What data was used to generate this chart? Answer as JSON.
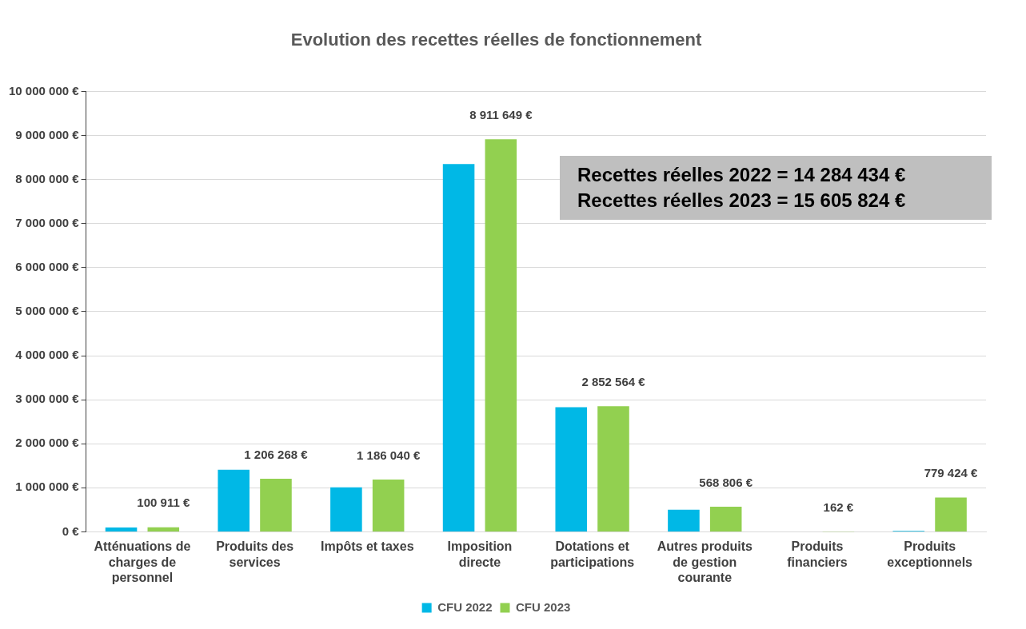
{
  "chart_data": {
    "type": "bar",
    "title": "Evolution des recettes réelles de fonctionnement",
    "categories": [
      "Atténuations de charges de personnel",
      "Produits des services",
      "Impôts et taxes",
      "Imposition directe",
      "Dotations et participations",
      "Autres produits de gestion courante",
      "Produits financiers",
      "Produits exceptionnels"
    ],
    "series": [
      {
        "name": "CFU 2022",
        "color": "#00b8e6",
        "values": [
          100000,
          1410000,
          1010000,
          8350000,
          2830000,
          500000,
          0,
          20000
        ]
      },
      {
        "name": "CFU 2023",
        "color": "#92d050",
        "values": [
          100911,
          1206268,
          1186040,
          8911649,
          2852564,
          568806,
          162,
          779424
        ],
        "value_labels": [
          "100 911 €",
          "1 206 268 €",
          "1 186 040 €",
          "8 911 649 €",
          "2 852 564 €",
          "568 806 €",
          "162 €",
          "779 424 €"
        ]
      }
    ],
    "ylim": [
      0,
      10000000
    ],
    "yticks": [
      {
        "value": 0,
        "label": "0 €"
      },
      {
        "value": 1000000,
        "label": "1 000 000 €"
      },
      {
        "value": 2000000,
        "label": "2 000 000 €"
      },
      {
        "value": 3000000,
        "label": "3 000 000 €"
      },
      {
        "value": 4000000,
        "label": "4 000 000 €"
      },
      {
        "value": 5000000,
        "label": "5 000 000 €"
      },
      {
        "value": 6000000,
        "label": "6 000 000 €"
      },
      {
        "value": 7000000,
        "label": "7 000 000 €"
      },
      {
        "value": 8000000,
        "label": "8 000 000 €"
      },
      {
        "value": 9000000,
        "label": "9 000 000 €"
      },
      {
        "value": 10000000,
        "label": "10 000 000 €"
      }
    ],
    "grid": "y",
    "legend": "bottom",
    "annotations": [
      "Recettes réelles 2022 = 14 284 434 €",
      "Recettes réelles 2023 = 15 605 824 €"
    ]
  }
}
